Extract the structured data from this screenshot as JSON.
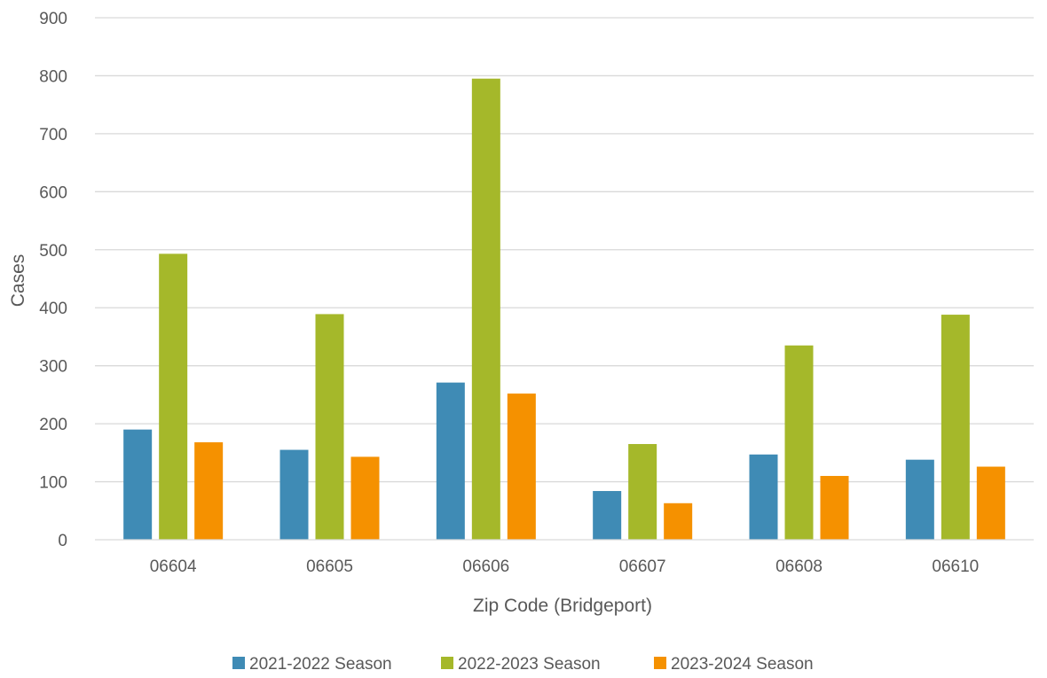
{
  "chart_data": {
    "type": "bar",
    "title": "",
    "xlabel": "Zip Code (Bridgeport)",
    "ylabel": "Cases",
    "categories": [
      "06604",
      "06605",
      "06606",
      "06607",
      "06608",
      "06610"
    ],
    "ylim": [
      0,
      900
    ],
    "yticks": [
      "0",
      "100",
      "200",
      "300",
      "400",
      "500",
      "600",
      "700",
      "800",
      "900"
    ],
    "grid": true,
    "legend_position": "bottom",
    "series": [
      {
        "name": "2021-2022 Season",
        "color": "#3f8bb5",
        "values": [
          190,
          155,
          271,
          84,
          147,
          138
        ]
      },
      {
        "name": "2022-2023 Season",
        "color": "#a5b82a",
        "values": [
          493,
          389,
          795,
          165,
          335,
          388
        ]
      },
      {
        "name": "2023-2024 Season",
        "color": "#f59100",
        "values": [
          168,
          143,
          252,
          63,
          110,
          126
        ]
      }
    ]
  }
}
